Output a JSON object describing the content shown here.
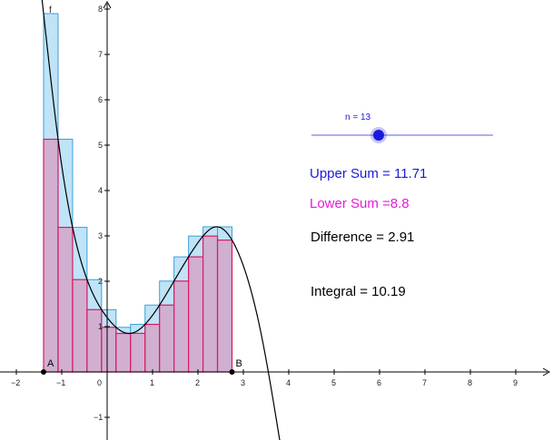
{
  "function_label": "f",
  "points": [
    {
      "name": "A",
      "x": -1.4
    },
    {
      "name": "B",
      "x": 2.75
    }
  ],
  "slider": {
    "label": "n = 13",
    "value": 13,
    "min": 1,
    "max": 50,
    "color": "#1a1ad9"
  },
  "sums": {
    "upper": "Upper Sum = 11.71",
    "lower": "Lower Sum =8.8",
    "difference": "Difference = 2.91",
    "integral": "Integral = 10.19"
  },
  "colors": {
    "upper_text": "#1a1ad9",
    "lower_text": "#e61ad9",
    "upper_fill": "#bfe3f7",
    "upper_stroke": "#3aa0d8",
    "lower_fill": "#d2a8cc",
    "lower_stroke": "#d81b60",
    "curve": "#000000",
    "axis": "#000000"
  },
  "axes": {
    "x_ticks": [
      "−2",
      "−1",
      "0",
      "1",
      "2",
      "3",
      "4",
      "5",
      "6",
      "7",
      "8",
      "9"
    ],
    "y_ticks": [
      "−1",
      "1",
      "2",
      "3",
      "4",
      "5",
      "6",
      "7",
      "8"
    ]
  }
}
